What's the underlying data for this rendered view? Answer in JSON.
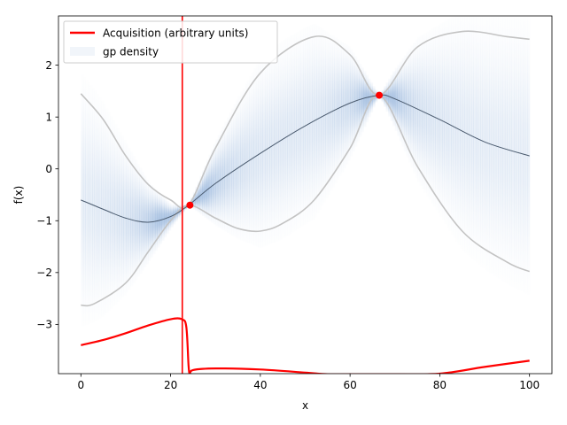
{
  "chart_data": {
    "type": "line",
    "title": "",
    "xlabel": "x",
    "ylabel": "f(x)",
    "xlim": [
      -5,
      105
    ],
    "ylim": [
      -3.95,
      2.95
    ],
    "xticks": [
      0,
      20,
      40,
      60,
      80,
      100
    ],
    "yticks": [
      -3,
      -2,
      -1,
      0,
      1,
      2
    ],
    "xtick_labels": [
      "0",
      "20",
      "40",
      "60",
      "80",
      "100"
    ],
    "ytick_labels": [
      "−3",
      "−2",
      "−1",
      "0",
      "1",
      "2"
    ],
    "grid": false,
    "legend_position": "top-left",
    "legend": [
      {
        "label": "Acquisition (arbitrary units)",
        "color": "#ff0000",
        "style": "line"
      },
      {
        "label": "gp density",
        "color": "#c6d6ea",
        "style": "patch"
      }
    ],
    "colors": {
      "mean": "#4a5a6e",
      "bounds": "#c3c3c3",
      "density": "#a6c0e1",
      "acquisition": "#ff0000",
      "observations": "#ff0000",
      "vline": "#ff0000"
    },
    "mean": {
      "x": [
        0,
        5,
        10,
        15,
        20,
        24,
        30,
        40,
        50,
        60,
        66.5,
        70,
        80,
        90,
        100
      ],
      "y": [
        -0.6,
        -0.78,
        -0.95,
        -1.03,
        -0.92,
        -0.7,
        -0.28,
        0.3,
        0.83,
        1.27,
        1.42,
        1.35,
        0.95,
        0.52,
        0.25
      ]
    },
    "upper_bound": {
      "x": [
        0,
        5,
        10,
        15,
        20,
        24,
        30,
        40,
        52,
        60,
        66.5,
        75,
        85,
        95,
        100
      ],
      "y": [
        1.45,
        0.95,
        0.25,
        -0.3,
        -0.6,
        -0.7,
        0.4,
        1.85,
        2.55,
        2.2,
        1.42,
        2.35,
        2.65,
        2.55,
        2.5
      ]
    },
    "lower_bound": {
      "x": [
        0,
        3,
        10,
        15,
        20,
        24,
        30,
        35,
        40,
        45,
        52,
        60,
        66.5,
        75,
        85,
        95,
        100
      ],
      "y": [
        -2.63,
        -2.6,
        -2.2,
        -1.6,
        -1.0,
        -0.7,
        -0.95,
        -1.15,
        -1.2,
        -1.05,
        -0.6,
        0.4,
        1.42,
        0.05,
        -1.2,
        -1.8,
        -1.98
      ]
    },
    "acquisition": {
      "x": [
        0,
        5,
        10,
        15,
        20,
        22.5,
        23.5,
        24.0,
        24.3,
        25,
        30,
        40,
        50,
        55,
        60,
        70,
        80,
        90,
        100
      ],
      "y": [
        -3.4,
        -3.3,
        -3.17,
        -3.02,
        -2.9,
        -2.9,
        -3.05,
        -3.8,
        -3.95,
        -3.88,
        -3.85,
        -3.87,
        -3.93,
        -3.96,
        -3.96,
        -3.96,
        -3.95,
        -3.82,
        -3.7
      ]
    },
    "observations": {
      "x": [
        24.3,
        66.5
      ],
      "y": [
        -0.7,
        1.42
      ]
    },
    "vline_x": 22.6
  }
}
